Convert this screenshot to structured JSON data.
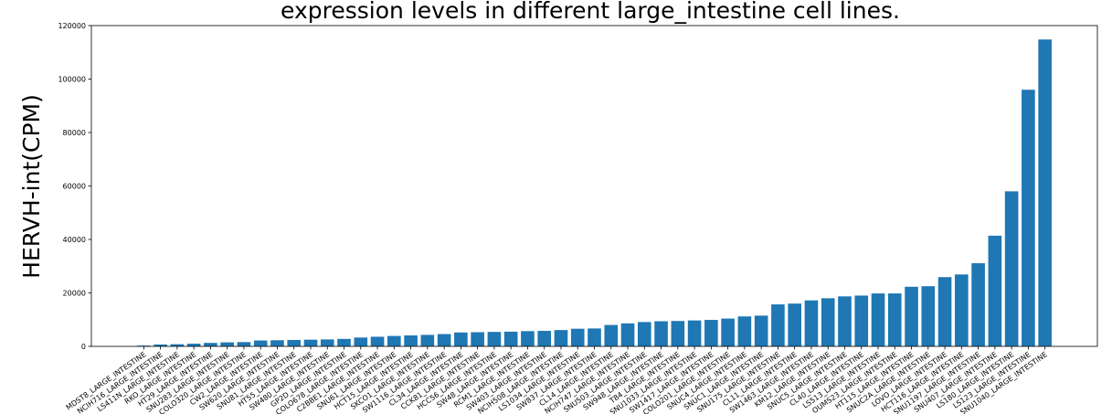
{
  "chart_data": {
    "type": "bar",
    "title": "expression levels in different large_intestine cell lines.",
    "y_label": "HERVH-int(CPM)",
    "color": "#1f77b4",
    "categories": [
      "MDST8_LARGE_INTESTINE",
      "NCIH716_LARGE_INTESTINE",
      "LS411N_LARGE_INTESTINE",
      "RKO_LARGE_INTESTINE",
      "HT29_LARGE_INTESTINE",
      "SNU283_LARGE_INTESTINE",
      "COLO320_LARGE_INTESTINE",
      "CW2_LARGE_INTESTINE",
      "SW620_LARGE_INTESTINE",
      "SNU81_LARGE_INTESTINE",
      "HT55_LARGE_INTESTINE",
      "SW480_LARGE_INTESTINE",
      "GP2D_LARGE_INTESTINE",
      "COLO678_LARGE_INTESTINE",
      "C2BBE1_LARGE_INTESTINE",
      "SNU61_LARGE_INTESTINE",
      "HCT15_LARGE_INTESTINE",
      "SKCO1_LARGE_INTESTINE",
      "SW1116_LARGE_INTESTINE",
      "CL34_LARGE_INTESTINE",
      "CCK81_LARGE_INTESTINE",
      "HCC56_LARGE_INTESTINE",
      "SW48_LARGE_INTESTINE",
      "RCM1_LARGE_INTESTINE",
      "SW403_LARGE_INTESTINE",
      "NCIH508_LARGE_INTESTINE",
      "LS1034_LARGE_INTESTINE",
      "SW837_LARGE_INTESTINE",
      "CL14_LARGE_INTESTINE",
      "NCIH747_LARGE_INTESTINE",
      "SNU503_LARGE_INTESTINE",
      "SW948_LARGE_INTESTINE",
      "T84_LARGE_INTESTINE",
      "SNU1033_LARGE_INTESTINE",
      "SW1417_LARGE_INTESTINE",
      "COLO201_LARGE_INTESTINE",
      "SNUC4_LARGE_INTESTINE",
      "SNUC1_LARGE_INTESTINE",
      "SNU175_LARGE_INTESTINE",
      "CL11_LARGE_INTESTINE",
      "SW1463_LARGE_INTESTINE",
      "KM12_LARGE_INTESTINE",
      "SNUC5_LARGE_INTESTINE",
      "CL40_LARGE_INTESTINE",
      "LS513_LARGE_INTESTINE",
      "OUMS23_LARGE_INTESTINE",
      "HT115_LARGE_INTESTINE",
      "SNUC2A_LARGE_INTESTINE",
      "LOVO_LARGE_INTESTINE",
      "HCT116_LARGE_INTESTINE",
      "SNU1197_LARGE_INTESTINE",
      "SNU407_LARGE_INTESTINE",
      "LS180_LARGE_INTESTINE",
      "LS123_LARGE_INTESTINE",
      "SNU1040_LARGE_INTESTINE"
    ],
    "values": [
      300,
      700,
      800,
      1000,
      1300,
      1500,
      1600,
      2200,
      2300,
      2400,
      2500,
      2600,
      2800,
      3300,
      3600,
      3900,
      4100,
      4300,
      4600,
      5200,
      5300,
      5400,
      5500,
      5700,
      5800,
      6100,
      6600,
      6700,
      8000,
      8600,
      9100,
      9400,
      9500,
      9700,
      9900,
      10400,
      11200,
      11500,
      15700,
      16000,
      17200,
      18000,
      18700,
      19000,
      19800,
      19800,
      22300,
      22500,
      25900,
      26900,
      31100,
      41400,
      58000,
      96000,
      114800
    ],
    "ylim": [
      0,
      120000
    ],
    "yticks": [
      0,
      20000,
      40000,
      60000,
      80000,
      100000,
      120000
    ]
  }
}
